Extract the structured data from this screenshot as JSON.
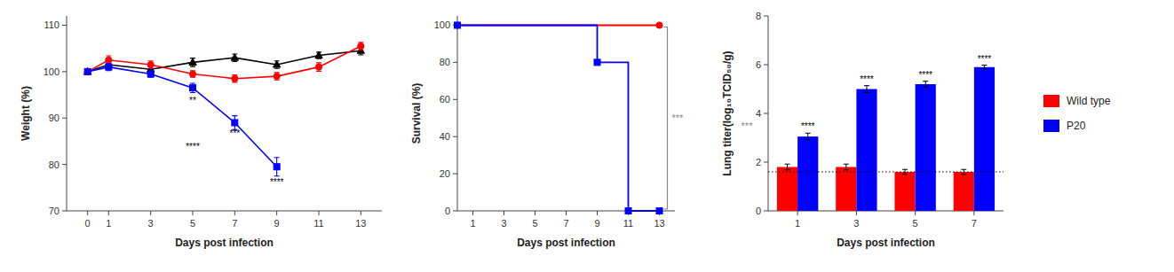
{
  "chart_data": [
    {
      "type": "line",
      "x_label": "Days post infection",
      "y_label": "Weight (%)",
      "x": [
        0,
        1,
        3,
        5,
        7,
        9,
        11,
        13
      ],
      "xlim": [
        -1,
        14
      ],
      "xticks": [
        0,
        1,
        3,
        5,
        7,
        9,
        11,
        13
      ],
      "ylim": [
        70,
        112
      ],
      "yticks": [
        70,
        80,
        90,
        100,
        110
      ],
      "grid": false,
      "series": [
        {
          "color": "#000000",
          "marker": "triangle",
          "values": [
            100,
            101.5,
            100.5,
            102,
            103,
            101.5,
            103.5,
            104.5
          ],
          "errors": [
            0.5,
            0.8,
            0.7,
            0.9,
            0.8,
            0.8,
            0.7,
            0.9
          ]
        },
        {
          "color": "#FF0000",
          "marker": "circle",
          "values": [
            100,
            102.5,
            101.5,
            99.5,
            98.5,
            99.0,
            101.0,
            105.5
          ],
          "errors": [
            0.5,
            0.9,
            0.8,
            0.7,
            0.8,
            0.8,
            0.9,
            0.8
          ]
        },
        {
          "color": "#0000FF",
          "marker": "square",
          "values": [
            100,
            101.0,
            99.5,
            96.5,
            89.0,
            79.5,
            null,
            null
          ],
          "errors": [
            0.5,
            0.8,
            0.7,
            1.0,
            1.5,
            2.0,
            null,
            null
          ]
        }
      ],
      "annotations": [
        {
          "text": "**",
          "x": 5,
          "y": 94.5
        },
        {
          "text": "***",
          "x": 7,
          "y": 87.5
        },
        {
          "text": "****",
          "x": 5,
          "y": 84.5
        },
        {
          "text": "****",
          "x": 9,
          "y": 77.0
        }
      ]
    },
    {
      "type": "step",
      "x_label": "Days post infection",
      "y_label": "Survival (%)",
      "xlim": [
        0,
        14
      ],
      "xticks": [
        1,
        3,
        5,
        7,
        9,
        11,
        13
      ],
      "ylim": [
        0,
        105
      ],
      "yticks": [
        0,
        20,
        40,
        60,
        80,
        100
      ],
      "grid": false,
      "series": [
        {
          "color": "#FF0000",
          "marker": "circle",
          "x": [
            0,
            13
          ],
          "values": [
            100,
            100
          ]
        },
        {
          "color": "#0000FF",
          "marker": "square",
          "x": [
            0,
            9,
            11,
            13
          ],
          "values": [
            100,
            80,
            0,
            0
          ]
        }
      ],
      "annotations": [
        {
          "text": "***",
          "x": 13.8,
          "y": 50
        }
      ]
    },
    {
      "type": "bar",
      "x_label": "Days post infection",
      "y_label": "Lung titer(log₁₀TCID₅₀/g)",
      "categories": [
        1,
        3,
        5,
        7
      ],
      "ylim": [
        0,
        8
      ],
      "yticks": [
        0,
        2,
        4,
        6,
        8
      ],
      "grid": false,
      "legend": "right",
      "hline": 1.6,
      "series": [
        {
          "name": "Wild type",
          "color": "#FF0000",
          "values": [
            1.8,
            1.8,
            1.6,
            1.6
          ],
          "errors": [
            0.12,
            0.12,
            0.1,
            0.1
          ]
        },
        {
          "name": "P20",
          "color": "#0000FF",
          "values": [
            3.05,
            5.0,
            5.2,
            5.9
          ],
          "errors": [
            0.14,
            0.14,
            0.12,
            0.08
          ]
        }
      ],
      "annotations": [
        {
          "text": "****",
          "x": 1
        },
        {
          "text": "****",
          "x": 3
        },
        {
          "text": "****",
          "x": 5
        },
        {
          "text": "****",
          "x": 7
        },
        {
          "text": "***",
          "y": 3.5
        }
      ]
    }
  ]
}
